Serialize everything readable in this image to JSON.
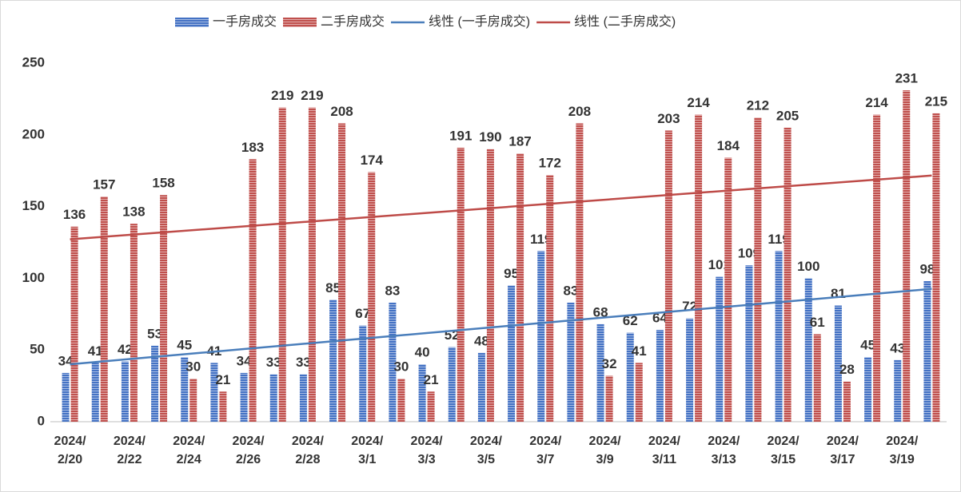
{
  "chart_data": {
    "type": "bar",
    "categories": [
      "2024/\n2/20",
      null,
      "2024/\n2/22",
      null,
      "2024/\n2/24",
      null,
      "2024/\n2/26",
      null,
      "2024/\n2/28",
      null,
      "2024/\n3/1",
      null,
      "2024/\n3/3",
      null,
      "2024/\n3/5",
      null,
      "2024/\n3/7",
      null,
      "2024/\n3/9",
      null,
      "2024/\n3/11",
      null,
      "2024/\n3/13",
      null,
      "2024/\n3/15",
      null,
      "2024/\n3/17",
      null,
      "2024/\n3/19",
      null
    ],
    "series": [
      {
        "name": "一手房成交",
        "color": "#4472c4",
        "values": [
          34,
          41,
          42,
          53,
          45,
          41,
          34,
          33,
          33,
          85,
          67,
          83,
          40,
          52,
          48,
          95,
          119,
          83,
          68,
          62,
          64,
          72,
          101,
          109,
          119,
          100,
          81,
          45,
          43,
          98
        ],
        "trendline": {
          "name": "线性 (一手房成交)",
          "color": "#4a7ebb"
        }
      },
      {
        "name": "二手房成交",
        "color": "#c0504d",
        "values": [
          136,
          157,
          138,
          158,
          30,
          21,
          183,
          219,
          219,
          208,
          174,
          30,
          21,
          191,
          190,
          187,
          172,
          208,
          32,
          41,
          203,
          214,
          184,
          212,
          205,
          61,
          28,
          214,
          231,
          215
        ],
        "trendline": {
          "name": "线性 (二手房成交)",
          "color": "#be4b48"
        }
      }
    ],
    "ylim": [
      0,
      250
    ],
    "yticks": [
      0,
      50,
      100,
      150,
      200,
      250
    ],
    "grid": false,
    "legend": "top"
  }
}
